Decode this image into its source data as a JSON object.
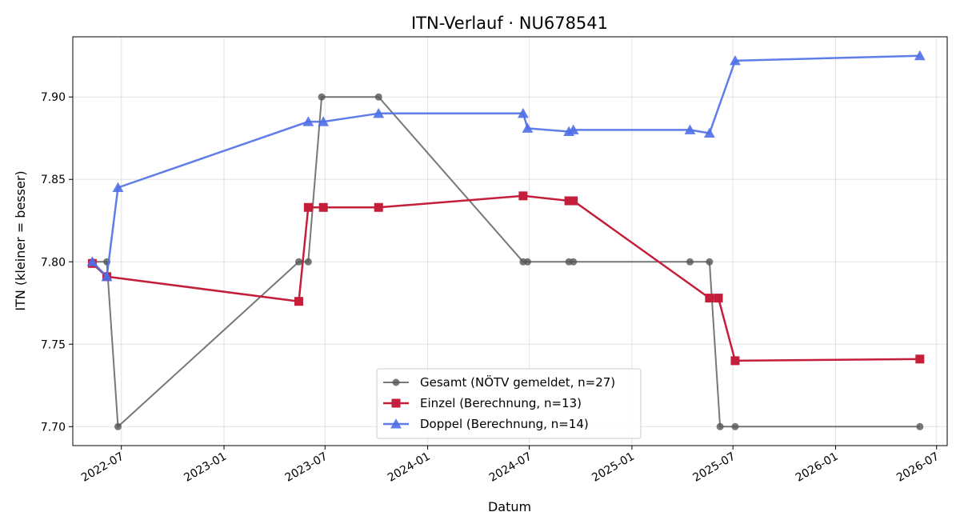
{
  "chart_data": {
    "type": "line",
    "title": "ITN-Verlauf · NU678541",
    "xlabel": "Datum",
    "ylabel": "ITN  (kleiner = besser)",
    "x_ticks": [
      "2022-07",
      "2023-01",
      "2023-07",
      "2024-01",
      "2024-07",
      "2025-01",
      "2025-07",
      "2026-01",
      "2026-07"
    ],
    "y_ticks": [
      "7.70",
      "7.75",
      "7.80",
      "7.85",
      "7.90"
    ],
    "xlim": [
      "2022-04-05",
      "2026-07-20"
    ],
    "ylim": [
      7.6885,
      7.9365
    ],
    "grid": true,
    "legend_position": "lower center",
    "series": [
      {
        "name": "Gesamt (NÖTV gemeldet, n=27)",
        "color": "#555555",
        "marker": "circle",
        "points": [
          {
            "x": "2022-05-10",
            "y": 7.8
          },
          {
            "x": "2022-06-05",
            "y": 7.8
          },
          {
            "x": "2022-06-25",
            "y": 7.7
          },
          {
            "x": "2023-05-15",
            "y": 7.8
          },
          {
            "x": "2023-06-01",
            "y": 7.8
          },
          {
            "x": "2023-06-25",
            "y": 7.9
          },
          {
            "x": "2023-10-05",
            "y": 7.9
          },
          {
            "x": "2024-06-20",
            "y": 7.8
          },
          {
            "x": "2024-06-28",
            "y": 7.8
          },
          {
            "x": "2024-09-10",
            "y": 7.8
          },
          {
            "x": "2024-09-18",
            "y": 7.8
          },
          {
            "x": "2025-04-15",
            "y": 7.8
          },
          {
            "x": "2025-05-20",
            "y": 7.8
          },
          {
            "x": "2025-06-08",
            "y": 7.7
          },
          {
            "x": "2025-07-05",
            "y": 7.7
          },
          {
            "x": "2026-06-01",
            "y": 7.7
          }
        ]
      },
      {
        "name": "Einzel (Berechnung, n=13)",
        "color": "#c41e3a",
        "marker": "square",
        "points": [
          {
            "x": "2022-05-10",
            "y": 7.799
          },
          {
            "x": "2022-06-05",
            "y": 7.791
          },
          {
            "x": "2023-05-15",
            "y": 7.776
          },
          {
            "x": "2023-06-01",
            "y": 7.833
          },
          {
            "x": "2023-06-28",
            "y": 7.833
          },
          {
            "x": "2023-10-05",
            "y": 7.833
          },
          {
            "x": "2024-06-20",
            "y": 7.84
          },
          {
            "x": "2024-09-10",
            "y": 7.837
          },
          {
            "x": "2024-09-18",
            "y": 7.837
          },
          {
            "x": "2025-05-20",
            "y": 7.778
          },
          {
            "x": "2025-06-05",
            "y": 7.778
          },
          {
            "x": "2025-07-05",
            "y": 7.74
          },
          {
            "x": "2026-06-01",
            "y": 7.741
          }
        ]
      },
      {
        "name": "Doppel (Berechnung, n=14)",
        "color": "#4f6fe8",
        "marker": "triangle",
        "points": [
          {
            "x": "2022-05-10",
            "y": 7.8
          },
          {
            "x": "2022-06-05",
            "y": 7.791
          },
          {
            "x": "2022-06-25",
            "y": 7.845
          },
          {
            "x": "2023-06-01",
            "y": 7.885
          },
          {
            "x": "2023-06-28",
            "y": 7.885
          },
          {
            "x": "2023-10-05",
            "y": 7.89
          },
          {
            "x": "2024-06-20",
            "y": 7.89
          },
          {
            "x": "2024-06-28",
            "y": 7.881
          },
          {
            "x": "2024-09-10",
            "y": 7.879
          },
          {
            "x": "2024-09-18",
            "y": 7.88
          },
          {
            "x": "2025-04-15",
            "y": 7.88
          },
          {
            "x": "2025-05-20",
            "y": 7.878
          },
          {
            "x": "2025-07-05",
            "y": 7.922
          },
          {
            "x": "2026-06-01",
            "y": 7.925
          }
        ]
      }
    ]
  }
}
